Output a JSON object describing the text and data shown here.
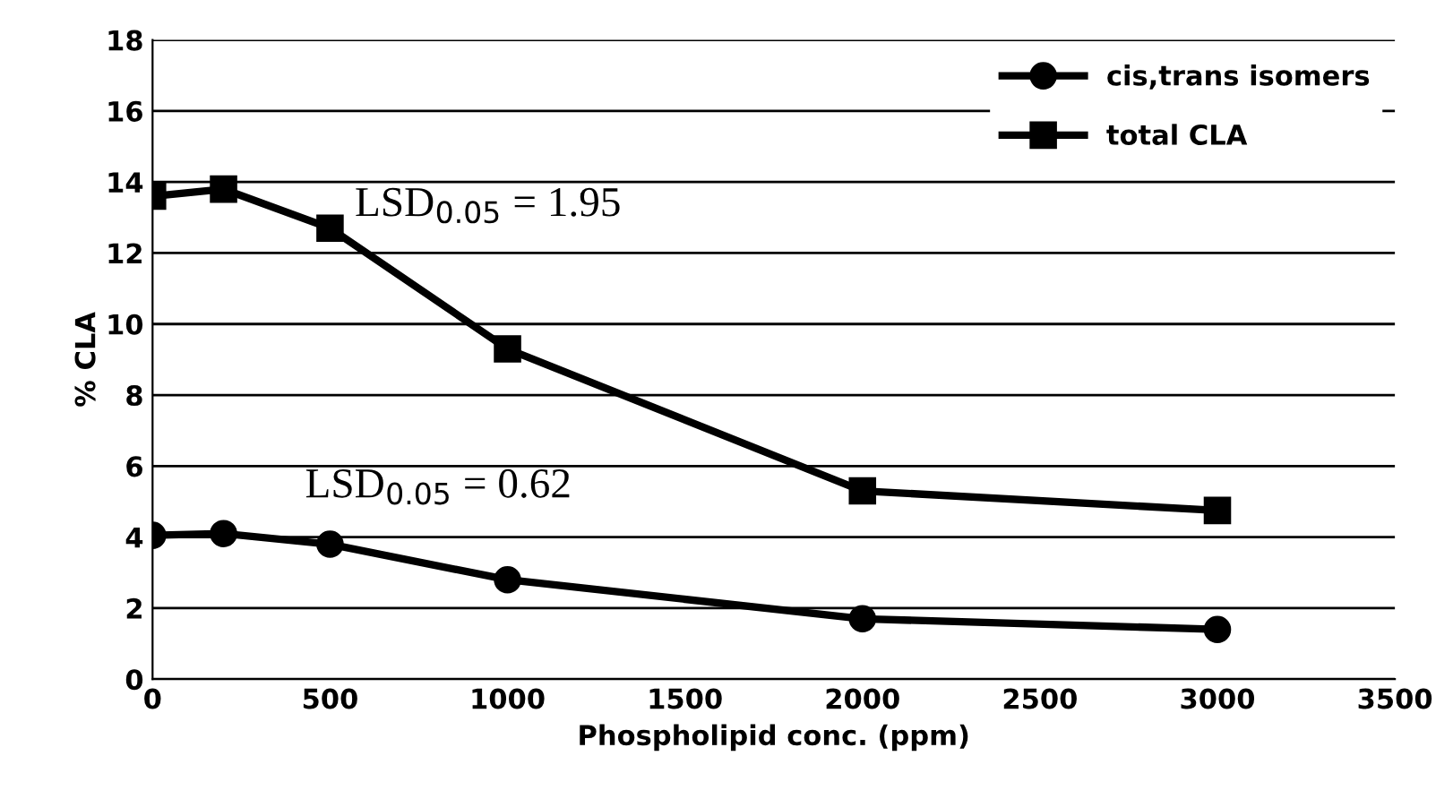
{
  "chart_data": {
    "type": "line",
    "xlabel": "Phospholipid conc. (ppm)",
    "ylabel": "% CLA",
    "x": [
      0,
      200,
      500,
      1000,
      2000,
      3000
    ],
    "series": [
      {
        "name": "cis,trans isomers",
        "color": "#000000",
        "marker": "circle",
        "values": [
          4.05,
          4.1,
          3.8,
          2.8,
          1.7,
          1.4
        ]
      },
      {
        "name": "total CLA",
        "color": "#000000",
        "marker": "square",
        "values": [
          13.6,
          13.8,
          12.7,
          9.3,
          5.3,
          4.75
        ]
      }
    ],
    "xlim": [
      0,
      3500
    ],
    "xticks": [
      0,
      500,
      1000,
      1500,
      2000,
      2500,
      3000,
      3500
    ],
    "ylim": [
      0,
      18
    ],
    "yticks": [
      0,
      2,
      4,
      6,
      8,
      10,
      12,
      14,
      16,
      18
    ],
    "grid": "y",
    "legend": "top right",
    "line_style": "solid",
    "annotations": [
      "LSD$_{0.05}$ = 1.95",
      "LSD$_{0.05}$ = 0.62"
    ]
  }
}
